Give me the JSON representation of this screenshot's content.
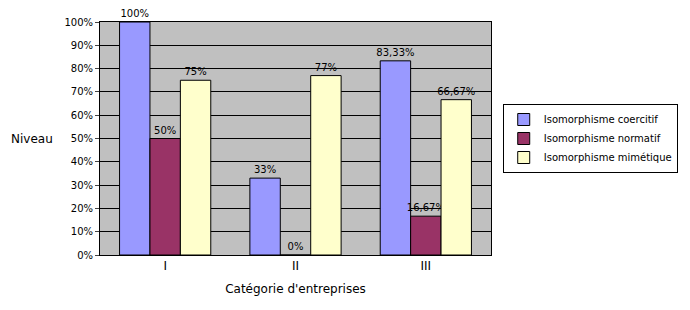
{
  "chart_data": {
    "type": "bar",
    "categories": [
      "I",
      "II",
      "III"
    ],
    "series": [
      {
        "name": "Isomorphisme coercitif",
        "color": "#9999ff",
        "values": [
          100,
          33,
          83.33
        ],
        "value_labels": [
          "100%",
          "33%",
          "83,33%"
        ]
      },
      {
        "name": "Isomorphisme normatif",
        "color": "#993366",
        "values": [
          50,
          0,
          16.67
        ],
        "value_labels": [
          "50%",
          "0%",
          "16,67%"
        ]
      },
      {
        "name": "Isomorphisme mimétique",
        "color": "#ffffcc",
        "values": [
          75,
          77,
          66.67
        ],
        "value_labels": [
          "75%",
          "77%",
          "66,67%"
        ]
      }
    ],
    "x_label": "Catégorie d'entreprises",
    "y_label": "Niveau",
    "ylim": [
      0,
      100
    ],
    "yticks": [
      {
        "value": 0,
        "label": "0%"
      },
      {
        "value": 10,
        "label": "10%"
      },
      {
        "value": 20,
        "label": "20%"
      },
      {
        "value": 30,
        "label": "30%"
      },
      {
        "value": 40,
        "label": "40%"
      },
      {
        "value": 50,
        "label": "50%"
      },
      {
        "value": 60,
        "label": "60%"
      },
      {
        "value": 70,
        "label": "70%"
      },
      {
        "value": 80,
        "label": "80%"
      },
      {
        "value": 90,
        "label": "90%"
      },
      {
        "value": 100,
        "label": "100%"
      }
    ],
    "grid": true,
    "legend": "right",
    "data_labels": true
  }
}
